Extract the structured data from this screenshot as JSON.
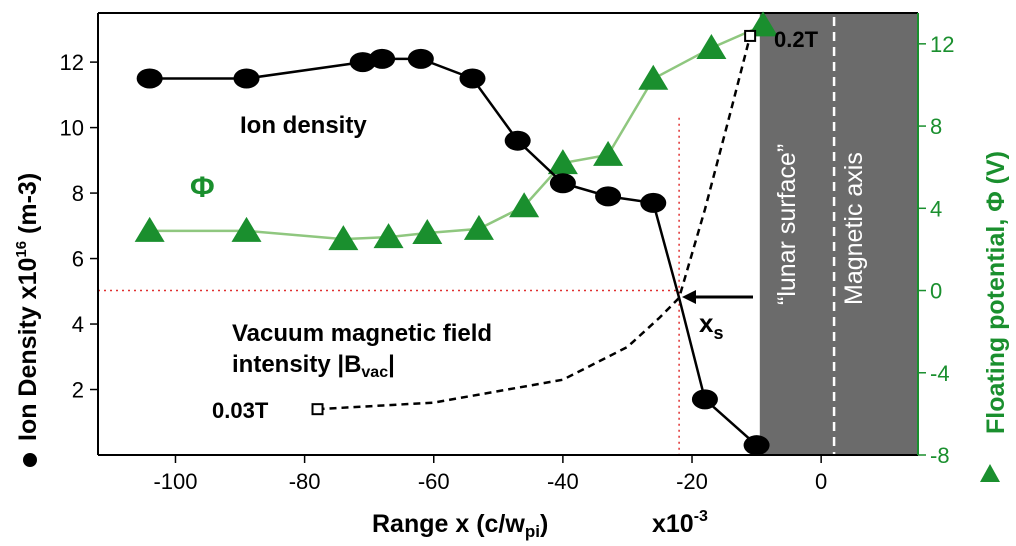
{
  "chart_data": {
    "type": "line",
    "colors": {
      "ion": "#000000",
      "phi": "#1a8f2e",
      "phi_marker": "#1a8f2e",
      "phi_line": "#8fc77f",
      "surface": "#6b6b6b",
      "guide": "#e03030"
    },
    "xlabel_main": "Range x  (c/w",
    "xlabel_sub": "pi",
    "xlabel_close": ")",
    "xscale_note": "x10",
    "xscale_exp": "-3",
    "ylabel_left": "Ion Density x10",
    "ylabel_left_exp": "16",
    "ylabel_left_unit": " (m-3)",
    "ylabel_right": "Floating potential, Φ (V)",
    "xlim": [
      -112,
      15
    ],
    "ylim_left": [
      0,
      13.5
    ],
    "ylim_right": [
      -8,
      13.5
    ],
    "x_ticks": [
      -100,
      -80,
      -60,
      -40,
      -20,
      0
    ],
    "x_tick_labels": [
      "-100",
      "-80",
      "-60",
      "-40",
      "-20",
      "0"
    ],
    "y_left_ticks": [
      2,
      4,
      6,
      8,
      10,
      12
    ],
    "y_left_tick_labels": [
      "2",
      "4",
      "6",
      "8",
      "10",
      "12"
    ],
    "y_right_ticks": [
      -8,
      -4,
      0,
      4,
      8,
      12
    ],
    "y_right_tick_labels": [
      "-8",
      "-4",
      "0",
      "4",
      "8",
      "12"
    ],
    "series": [
      {
        "name": "Ion density",
        "axis": "left",
        "marker": "circle",
        "x": [
          -104,
          -89,
          -71,
          -68,
          -62,
          -54,
          -47,
          -40,
          -33,
          -26,
          -22,
          -18,
          -10
        ],
        "y": [
          11.5,
          11.5,
          12.0,
          12.1,
          12.1,
          11.5,
          9.6,
          8.3,
          7.9,
          7.7,
          4.8,
          1.7,
          0.3
        ]
      },
      {
        "name": "Φ",
        "axis": "right",
        "marker": "triangle",
        "x": [
          -104,
          -89,
          -74,
          -67,
          -61,
          -53,
          -46,
          -40,
          -33,
          -26,
          -17,
          -9
        ],
        "y": [
          2.9,
          2.9,
          2.5,
          2.6,
          2.8,
          3.0,
          4.1,
          6.2,
          6.6,
          10.3,
          11.8,
          12.9
        ]
      },
      {
        "name": "Vacuum magnetic field intensity |Bvac|",
        "axis": "left",
        "marker": "square",
        "dashed": true,
        "x": [
          -78,
          -60,
          -40,
          -30,
          -25,
          -22,
          -18,
          -14,
          -11
        ],
        "y": [
          1.4,
          1.6,
          2.3,
          3.3,
          4.2,
          4.8,
          7.5,
          10.5,
          12.8
        ]
      }
    ],
    "annotations": {
      "ion_label": "Ion density",
      "phi_label": "Φ",
      "bvac_line1": "Vacuum magnetic field",
      "bvac_line2": "intensity |B",
      "bvac_sub": "vac",
      "bvac_close": "|",
      "b_low": "0.03T",
      "b_high": "0.2T",
      "xs": "x",
      "xs_sub": "s",
      "lunar_surface": "“lunar surface”",
      "magnetic_axis": "Magnetic axis"
    },
    "surface_region": {
      "x_start": -9.5,
      "x_end": 15
    },
    "magnetic_axis_x": 2,
    "xs_x": -22,
    "xs_phi_zero_y": 0
  }
}
